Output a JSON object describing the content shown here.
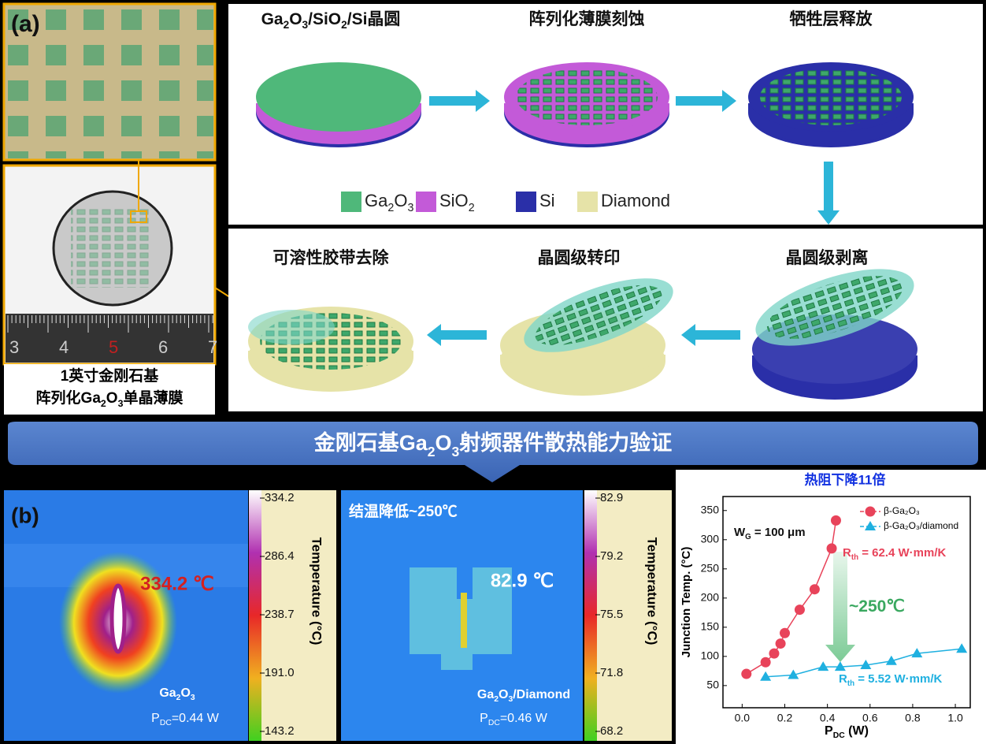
{
  "panel_a": {
    "label": "(a)",
    "ruler_labels": [
      "3",
      "4",
      "5",
      "6",
      "7"
    ],
    "caption": [
      "1英寸金刚石基",
      [
        "阵列化Ga",
        "2",
        "O",
        "3",
        "单晶薄膜"
      ]
    ]
  },
  "process": {
    "steps": [
      [
        "Ga",
        "2",
        "O",
        "3",
        "/SiO",
        "2",
        "/Si晶圆"
      ],
      [
        "阵列化薄膜刻蚀"
      ],
      [
        "牺牲层释放"
      ],
      [
        "晶圆级剥离"
      ],
      [
        "晶圆级转印"
      ],
      [
        "可溶性胶带去除"
      ]
    ],
    "legend": [
      {
        "name": [
          "Ga",
          "2",
          "O",
          "3"
        ],
        "color": "#4fb87a"
      },
      {
        "name": [
          "SiO",
          "2"
        ],
        "color": "#c35ad8"
      },
      {
        "name": [
          "Si"
        ],
        "color": "#2a2fa8"
      },
      {
        "name": [
          "Diamond"
        ],
        "color": "#e6e3a8"
      }
    ]
  },
  "banner": [
    "金刚石基Ga",
    "2",
    "O",
    "3",
    "射频器件散热能力验证"
  ],
  "panel_b": {
    "label": "(b)",
    "image1": {
      "peak": "334.2 ℃",
      "sample": [
        "Ga",
        "2",
        "O",
        "3"
      ],
      "power": [
        "P",
        "DC",
        "=0.44 W"
      ],
      "colorbar_label": "Temperature (°C)",
      "colorbar_ticks": [
        "334.2",
        "286.4",
        "238.7",
        "191.0",
        "143.2"
      ]
    },
    "image2": {
      "note": "结温降低~250℃",
      "peak": "82.9 ℃",
      "sample": [
        "Ga",
        "2",
        "O",
        "3",
        "/Diamond"
      ],
      "power": [
        "P",
        "DC",
        "=0.46 W"
      ],
      "colorbar_label": "Temperature (°C)",
      "colorbar_ticks": [
        "82.9",
        "79.2",
        "75.5",
        "71.8",
        "68.2"
      ]
    }
  },
  "chart_data": {
    "type": "line",
    "title": "热阻下降11倍",
    "x_label": [
      "P",
      "DC",
      " (W)"
    ],
    "y_label": "Junction Temp. (°C)",
    "xlim": [
      -0.09,
      1.07
    ],
    "ylim": [
      12,
      374
    ],
    "xticks": [
      {
        "value": 0,
        "label": "0.0"
      },
      {
        "value": 0.2,
        "label": "0.2"
      },
      {
        "value": 0.4,
        "label": "0.4"
      },
      {
        "value": 0.6,
        "label": "0.6"
      },
      {
        "value": 0.8,
        "label": "0.8"
      },
      {
        "value": 1,
        "label": "1.0"
      }
    ],
    "yticks": [
      50,
      100,
      150,
      200,
      250,
      300,
      350
    ],
    "series": [
      {
        "name": "β-Ga₂O₃",
        "color": "#e8435a",
        "marker": "circle",
        "x": [
          0.02,
          0.11,
          0.15,
          0.18,
          0.2,
          0.27,
          0.34,
          0.42,
          0.44
        ],
        "values": [
          70,
          90,
          105,
          122,
          140,
          180,
          215,
          285,
          333
        ]
      },
      {
        "name": "β-Ga₂O₃/diamond",
        "color": "#1fb0e0",
        "marker": "triangle",
        "x": [
          0.11,
          0.24,
          0.38,
          0.46,
          0.58,
          0.7,
          0.82,
          1.03
        ],
        "values": [
          65,
          68,
          82,
          82,
          85,
          92,
          105,
          113
        ]
      }
    ],
    "annotations": [
      [
        "W",
        "G",
        " = 100 μm"
      ],
      [
        "R",
        "th",
        " = 62.4 W·mm/K"
      ],
      [
        "~250℃"
      ],
      [
        "R",
        "th",
        " = 5.52 W·mm/K"
      ]
    ]
  }
}
